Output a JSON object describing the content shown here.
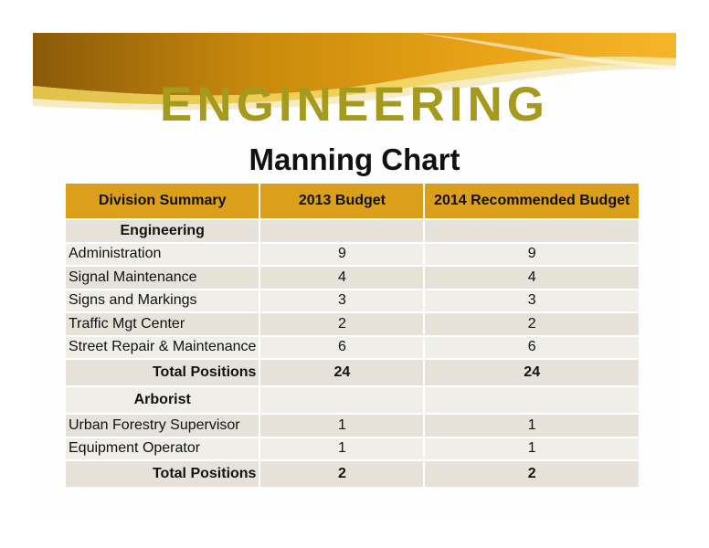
{
  "slide": {
    "title": "ENGINEERING",
    "subtitle": "Manning Chart",
    "colors": {
      "title": "#a59a1e",
      "header_bg": "#dc9f1a",
      "row_odd": "#e6e2d9",
      "row_even": "#f0eee8"
    }
  },
  "table": {
    "headers": [
      "Division Summary",
      "2013 Budget",
      "2014 Recommended Budget"
    ],
    "engineering": {
      "section": "Engineering",
      "rows": [
        {
          "name": "Administration",
          "b2013": "9",
          "b2014": "9"
        },
        {
          "name": "Signal Maintenance",
          "b2013": "4",
          "b2014": "4"
        },
        {
          "name": "Signs and Markings",
          "b2013": "3",
          "b2014": "3"
        },
        {
          "name": "Traffic Mgt Center",
          "b2013": "2",
          "b2014": "2"
        },
        {
          "name": "Street Repair & Maintenance",
          "b2013": "6",
          "b2014": "6"
        }
      ],
      "total": {
        "label": "Total Positions",
        "b2013": "24",
        "b2014": "24"
      }
    },
    "arborist": {
      "section": "Arborist",
      "rows": [
        {
          "name": "Urban Forestry Supervisor",
          "b2013": "1",
          "b2014": "1"
        },
        {
          "name": "Equipment Operator",
          "b2013": "1",
          "b2014": "1"
        }
      ],
      "total": {
        "label": "Total Positions",
        "b2013": "2",
        "b2014": "2"
      }
    }
  }
}
